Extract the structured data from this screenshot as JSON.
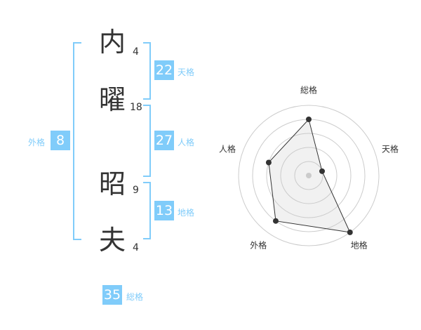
{
  "name": {
    "chars": [
      {
        "char": "内",
        "strokes": "4"
      },
      {
        "char": "曜",
        "strokes": "18"
      },
      {
        "char": "昭",
        "strokes": "9"
      },
      {
        "char": "夫",
        "strokes": "4"
      }
    ]
  },
  "kaku": {
    "tenkaku": {
      "label": "天格",
      "value": "22"
    },
    "jinkaku": {
      "label": "人格",
      "value": "27"
    },
    "chikaku": {
      "label": "地格",
      "value": "13"
    },
    "gaikaku": {
      "label": "外格",
      "value": "8"
    },
    "soukaku": {
      "label": "総格",
      "value": "35"
    }
  },
  "accent_color": "#80ccfa",
  "chart_data": {
    "type": "radar",
    "axes": [
      "総格",
      "天格",
      "地格",
      "外格",
      "人格"
    ],
    "values": [
      4,
      1,
      5,
      4,
      3
    ],
    "max": 5,
    "rings": 5
  }
}
